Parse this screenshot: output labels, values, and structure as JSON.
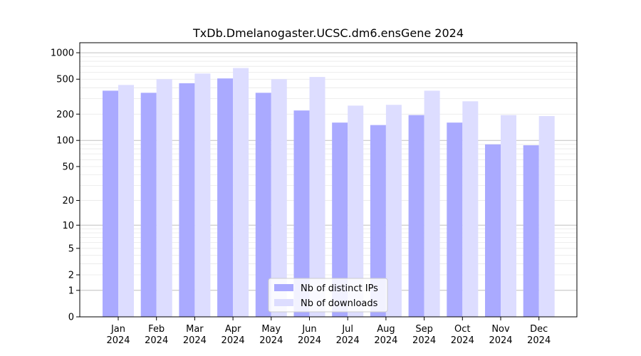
{
  "chart_data": {
    "type": "bar",
    "title": "TxDb.Dmelanogaster.UCSC.dm6.ensGene 2024",
    "xlabel": "",
    "ylabel": "",
    "yscale": "log1p",
    "ylim": [
      0,
      1300
    ],
    "yticks": [
      0,
      1,
      2,
      5,
      10,
      20,
      50,
      100,
      200,
      500,
      1000
    ],
    "ytick_labels": [
      "0",
      "1",
      "2",
      "5",
      "10",
      "20",
      "50",
      "100",
      "200",
      "500",
      "1000"
    ],
    "grid": true,
    "legend_position": "bottom-center",
    "categories": [
      {
        "month": "Jan",
        "year": "2024"
      },
      {
        "month": "Feb",
        "year": "2024"
      },
      {
        "month": "Mar",
        "year": "2024"
      },
      {
        "month": "Apr",
        "year": "2024"
      },
      {
        "month": "May",
        "year": "2024"
      },
      {
        "month": "Jun",
        "year": "2024"
      },
      {
        "month": "Jul",
        "year": "2024"
      },
      {
        "month": "Aug",
        "year": "2024"
      },
      {
        "month": "Sep",
        "year": "2024"
      },
      {
        "month": "Oct",
        "year": "2024"
      },
      {
        "month": "Nov",
        "year": "2024"
      },
      {
        "month": "Dec",
        "year": "2024"
      }
    ],
    "series": [
      {
        "name": "Nb of distinct IPs",
        "color": "#aaaaff",
        "values": [
          370,
          350,
          450,
          510,
          350,
          220,
          160,
          150,
          195,
          160,
          90,
          88
        ]
      },
      {
        "name": "Nb of downloads",
        "color": "#ddddff",
        "values": [
          430,
          500,
          580,
          670,
          500,
          530,
          250,
          255,
          370,
          280,
          195,
          190
        ]
      }
    ]
  }
}
